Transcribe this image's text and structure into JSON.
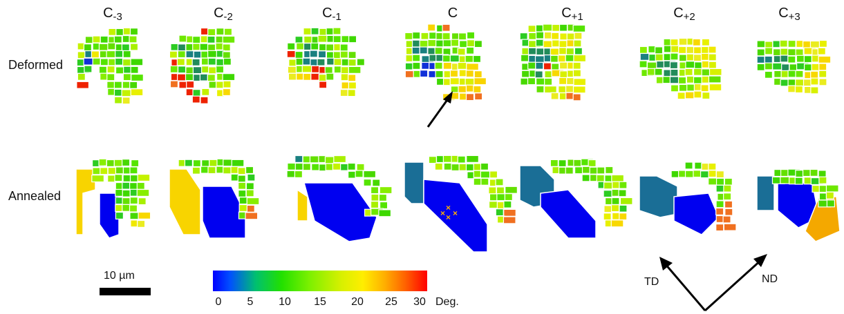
{
  "columns": [
    {
      "base": "C",
      "sub": "-3"
    },
    {
      "base": "C",
      "sub": "-2"
    },
    {
      "base": "C",
      "sub": "-1"
    },
    {
      "base": "C",
      "sub": ""
    },
    {
      "base": "C",
      "sub": "+1"
    },
    {
      "base": "C",
      "sub": "+2"
    },
    {
      "base": "C",
      "sub": "+3"
    }
  ],
  "rows": {
    "deformed": "Deformed",
    "annealed": "Annealed"
  },
  "scale_bar": {
    "label": "10 µm"
  },
  "colorbar": {
    "ticks": [
      "0",
      "5",
      "10",
      "15",
      "20",
      "25",
      "30"
    ],
    "unit": "Deg."
  },
  "axes": {
    "left": "TD",
    "right": "ND"
  },
  "colors": {
    "blue": "#0000f0",
    "teal": "#1a6e96",
    "yellow": "#f8d800",
    "orange": "#f4a800",
    "red": "#ee2200",
    "green": "#44dd00"
  }
}
